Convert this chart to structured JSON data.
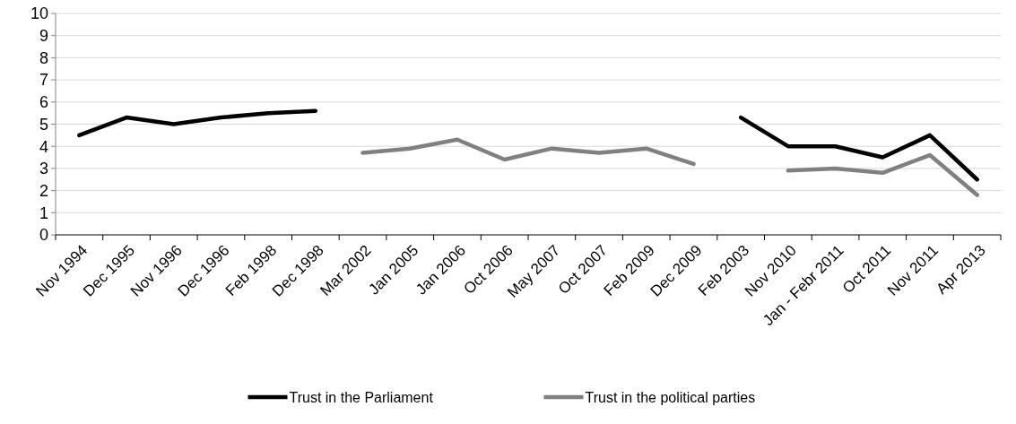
{
  "chart_data": {
    "type": "line",
    "categories": [
      "Nov 1994",
      "Dec 1995",
      "Nov 1996",
      "Dec 1996",
      "Feb 1998",
      "Dec 1998",
      "Mar 2002",
      "Jan 2005",
      "Jan 2006",
      "Oct 2006",
      "May 2007",
      "Oct 2007",
      "Feb 2009",
      "Dec 2009",
      "Feb 2003",
      "Nov 2010",
      "Jan - Febr 2011",
      "Oct 2011",
      "Nov 2011",
      "Apr 2013"
    ],
    "series": [
      {
        "name": "Trust in the Parliament",
        "color": "#000000",
        "values": [
          4.5,
          5.3,
          5.0,
          5.3,
          5.5,
          5.6,
          null,
          null,
          null,
          null,
          null,
          null,
          null,
          null,
          5.3,
          4.0,
          4.0,
          3.5,
          4.5,
          2.5
        ]
      },
      {
        "name": "Trust in the political parties",
        "color": "#808080",
        "values": [
          null,
          null,
          null,
          null,
          null,
          null,
          3.7,
          3.9,
          4.3,
          3.4,
          3.9,
          3.7,
          3.9,
          3.2,
          null,
          2.9,
          3.0,
          2.8,
          3.6,
          1.8
        ]
      }
    ],
    "ylim": [
      0,
      10
    ],
    "yticks": [
      0,
      1,
      2,
      3,
      4,
      5,
      6,
      7,
      8,
      9,
      10
    ],
    "grid": "y",
    "legend": "bottom",
    "marker": "none",
    "line_style": "solid"
  }
}
